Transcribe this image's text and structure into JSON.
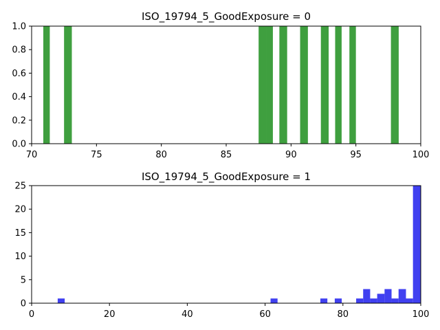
{
  "chart_data": [
    {
      "type": "bar",
      "title": "ISO_19794_5_GoodExposure = 0",
      "xlabel": "",
      "ylabel": "",
      "xlim": [
        70,
        100
      ],
      "ylim": [
        0,
        1.0
      ],
      "xticks": [
        "70",
        "75",
        "80",
        "85",
        "90",
        "95",
        "100"
      ],
      "yticks": [
        "0.0",
        "0.2",
        "0.4",
        "0.6",
        "0.8",
        "1.0"
      ],
      "color": "#3f9f3f",
      "bars": [
        {
          "x0": 70.9,
          "x1": 71.4,
          "value": 1
        },
        {
          "x0": 72.5,
          "x1": 73.1,
          "value": 1
        },
        {
          "x0": 87.5,
          "x1": 88.1,
          "value": 1
        },
        {
          "x0": 88.1,
          "x1": 88.6,
          "value": 1
        },
        {
          "x0": 89.1,
          "x1": 89.7,
          "value": 1
        },
        {
          "x0": 90.7,
          "x1": 91.3,
          "value": 1
        },
        {
          "x0": 92.3,
          "x1": 92.9,
          "value": 1
        },
        {
          "x0": 93.4,
          "x1": 93.9,
          "value": 1
        },
        {
          "x0": 94.5,
          "x1": 95.0,
          "value": 1
        },
        {
          "x0": 97.7,
          "x1": 98.3,
          "value": 1
        }
      ]
    },
    {
      "type": "bar",
      "title": "ISO_19794_5_GoodExposure = 1",
      "xlabel": "",
      "ylabel": "",
      "xlim": [
        0,
        100
      ],
      "ylim": [
        0,
        25
      ],
      "xticks": [
        "0",
        "20",
        "40",
        "60",
        "80",
        "100"
      ],
      "yticks": [
        "0",
        "5",
        "10",
        "15",
        "20",
        "25"
      ],
      "color": "#4040f0",
      "bars": [
        {
          "x0": 6.7,
          "x1": 8.5,
          "value": 1
        },
        {
          "x0": 61.4,
          "x1": 63.2,
          "value": 1
        },
        {
          "x0": 74.2,
          "x1": 76.0,
          "value": 1
        },
        {
          "x0": 77.9,
          "x1": 79.7,
          "value": 1
        },
        {
          "x0": 83.4,
          "x1": 85.2,
          "value": 1
        },
        {
          "x0": 85.2,
          "x1": 87.0,
          "value": 3
        },
        {
          "x0": 87.0,
          "x1": 88.8,
          "value": 1
        },
        {
          "x0": 88.8,
          "x1": 90.7,
          "value": 2
        },
        {
          "x0": 90.7,
          "x1": 92.5,
          "value": 3
        },
        {
          "x0": 92.5,
          "x1": 94.3,
          "value": 1
        },
        {
          "x0": 94.3,
          "x1": 96.2,
          "value": 3
        },
        {
          "x0": 96.2,
          "x1": 98.0,
          "value": 1
        },
        {
          "x0": 98.0,
          "x1": 100.0,
          "value": 25
        }
      ]
    }
  ]
}
